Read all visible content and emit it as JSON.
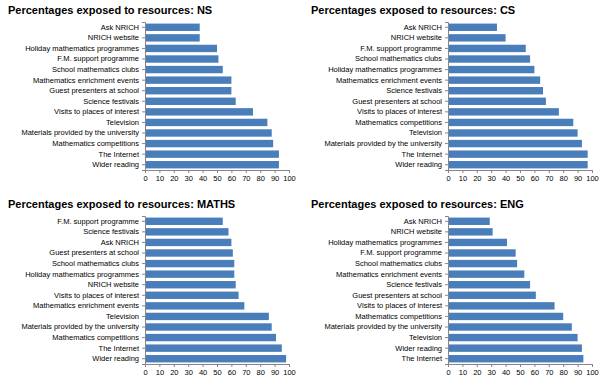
{
  "chart_data": [
    {
      "type": "bar",
      "orientation": "horizontal",
      "title": "Percentages exposed to resources: NS",
      "categories": [
        "Ask NRICH",
        "NRICH website",
        "Holiday mathematics programmes",
        "F.M. support programme",
        "School mathematics clubs",
        "Mathematics enrichment events",
        "Guest presenters at school",
        "Science festivals",
        "Visits to places of interest",
        "Television",
        "Materials provided by the university",
        "Mathematics competitions",
        "The Internet",
        "Wider reading"
      ],
      "values": [
        38,
        38,
        50,
        51,
        54,
        60,
        60,
        63,
        75,
        85,
        88,
        89,
        93,
        93
      ],
      "color": "#4a7ebb",
      "xlim": [
        0,
        100
      ],
      "xticks": [
        0,
        10,
        20,
        30,
        40,
        50,
        60,
        70,
        80,
        90,
        100
      ],
      "grid": false
    },
    {
      "type": "bar",
      "orientation": "horizontal",
      "title": "Percentages exposed to resources: CS",
      "categories": [
        "Ask NRICH",
        "NRICH website",
        "F.M. support programme",
        "School mathematics clubs",
        "Holiday mathematics programmes",
        "Mathematics enrichment events",
        "Science festivals",
        "Guest presenters at school",
        "Visits to places of interest",
        "Mathematics competitions",
        "Television",
        "Materials provided by the university",
        "The Internet",
        "Wider reading"
      ],
      "values": [
        34,
        40,
        54,
        57,
        60,
        64,
        66,
        68,
        77,
        87,
        90,
        93,
        97,
        97
      ],
      "color": "#4a7ebb",
      "xlim": [
        0,
        100
      ],
      "xticks": [
        0,
        10,
        20,
        30,
        40,
        50,
        60,
        70,
        80,
        90,
        100
      ],
      "grid": false
    },
    {
      "type": "bar",
      "orientation": "horizontal",
      "title": "Percentages exposed to resources: MATHS",
      "categories": [
        "F.M. support programme",
        "Science festivals",
        "Ask NRICH",
        "Guest presenters at school",
        "School mathematics clubs",
        "Holiday mathematics programmes",
        "NRICH website",
        "Visits to places of interest",
        "Mathematics enrichment events",
        "Television",
        "Materials provided by the university",
        "Mathematics competitions",
        "The Internet",
        "Wider reading"
      ],
      "values": [
        54,
        58,
        60,
        61,
        62,
        62,
        63,
        65,
        69,
        86,
        88,
        91,
        95,
        98
      ],
      "color": "#4a7ebb",
      "xlim": [
        0,
        100
      ],
      "xticks": [
        0,
        10,
        20,
        30,
        40,
        50,
        60,
        70,
        80,
        90,
        100
      ],
      "grid": false
    },
    {
      "type": "bar",
      "orientation": "horizontal",
      "title": "Percentages exposed to resources: ENG",
      "categories": [
        "Ask NRICH",
        "NRICH website",
        "Holiday mathematics programmes",
        "F.M. support programme",
        "School mathematics clubs",
        "Mathematics enrichment events",
        "Science festivals",
        "Guest presenters at school",
        "Visits to places of interest",
        "Mathematics competitions",
        "Materials provided by the university",
        "Television",
        "Wider reading",
        "The Internet"
      ],
      "values": [
        29,
        31,
        41,
        47,
        48,
        53,
        57,
        61,
        74,
        80,
        86,
        90,
        93,
        94
      ],
      "color": "#4a7ebb",
      "xlim": [
        0,
        100
      ],
      "xticks": [
        0,
        10,
        20,
        30,
        40,
        50,
        60,
        70,
        80,
        90,
        100
      ],
      "grid": false
    }
  ]
}
